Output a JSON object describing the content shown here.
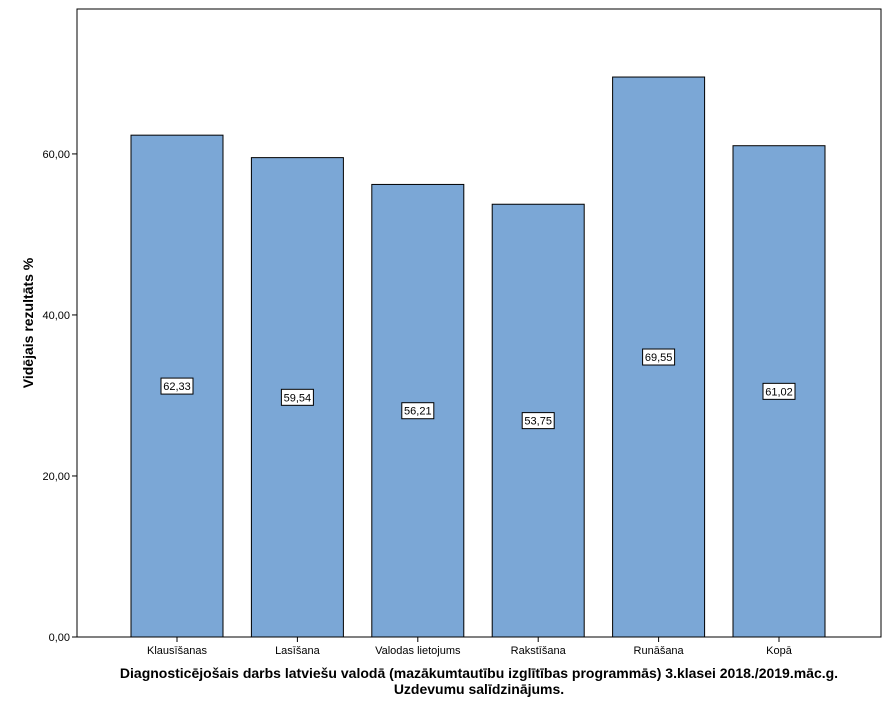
{
  "chart_data": {
    "type": "bar",
    "categories": [
      "Klausīšanas",
      "Lasīšana",
      "Valodas lietojums",
      "Rakstīšana",
      "Runāšana",
      "Kopā"
    ],
    "values": [
      62.33,
      59.54,
      56.21,
      53.75,
      69.55,
      61.02
    ],
    "data_labels": [
      "62,33",
      "59,54",
      "56,21",
      "53,75",
      "69,55",
      "61,02"
    ],
    "ylabel": "Vidējais rezultāts %",
    "xlabel_lines": [
      "Diagnosticējošais darbs latviešu valodā (mazākumtautību izglītības programmās) 3.klasei 2018./2019.māc.g.",
      "Uzdevumu salīdzinājums."
    ],
    "yticks": [
      0,
      20,
      40,
      60
    ],
    "ytick_labels": [
      "0,00",
      "20,00",
      "40,00",
      "60,00"
    ],
    "ylim": [
      0,
      78
    ],
    "grid": false,
    "colors": {
      "bar_fill": "#7BA7D6",
      "bar_stroke": "#000000",
      "axis": "#000000",
      "label_box": "#ffffff"
    }
  }
}
